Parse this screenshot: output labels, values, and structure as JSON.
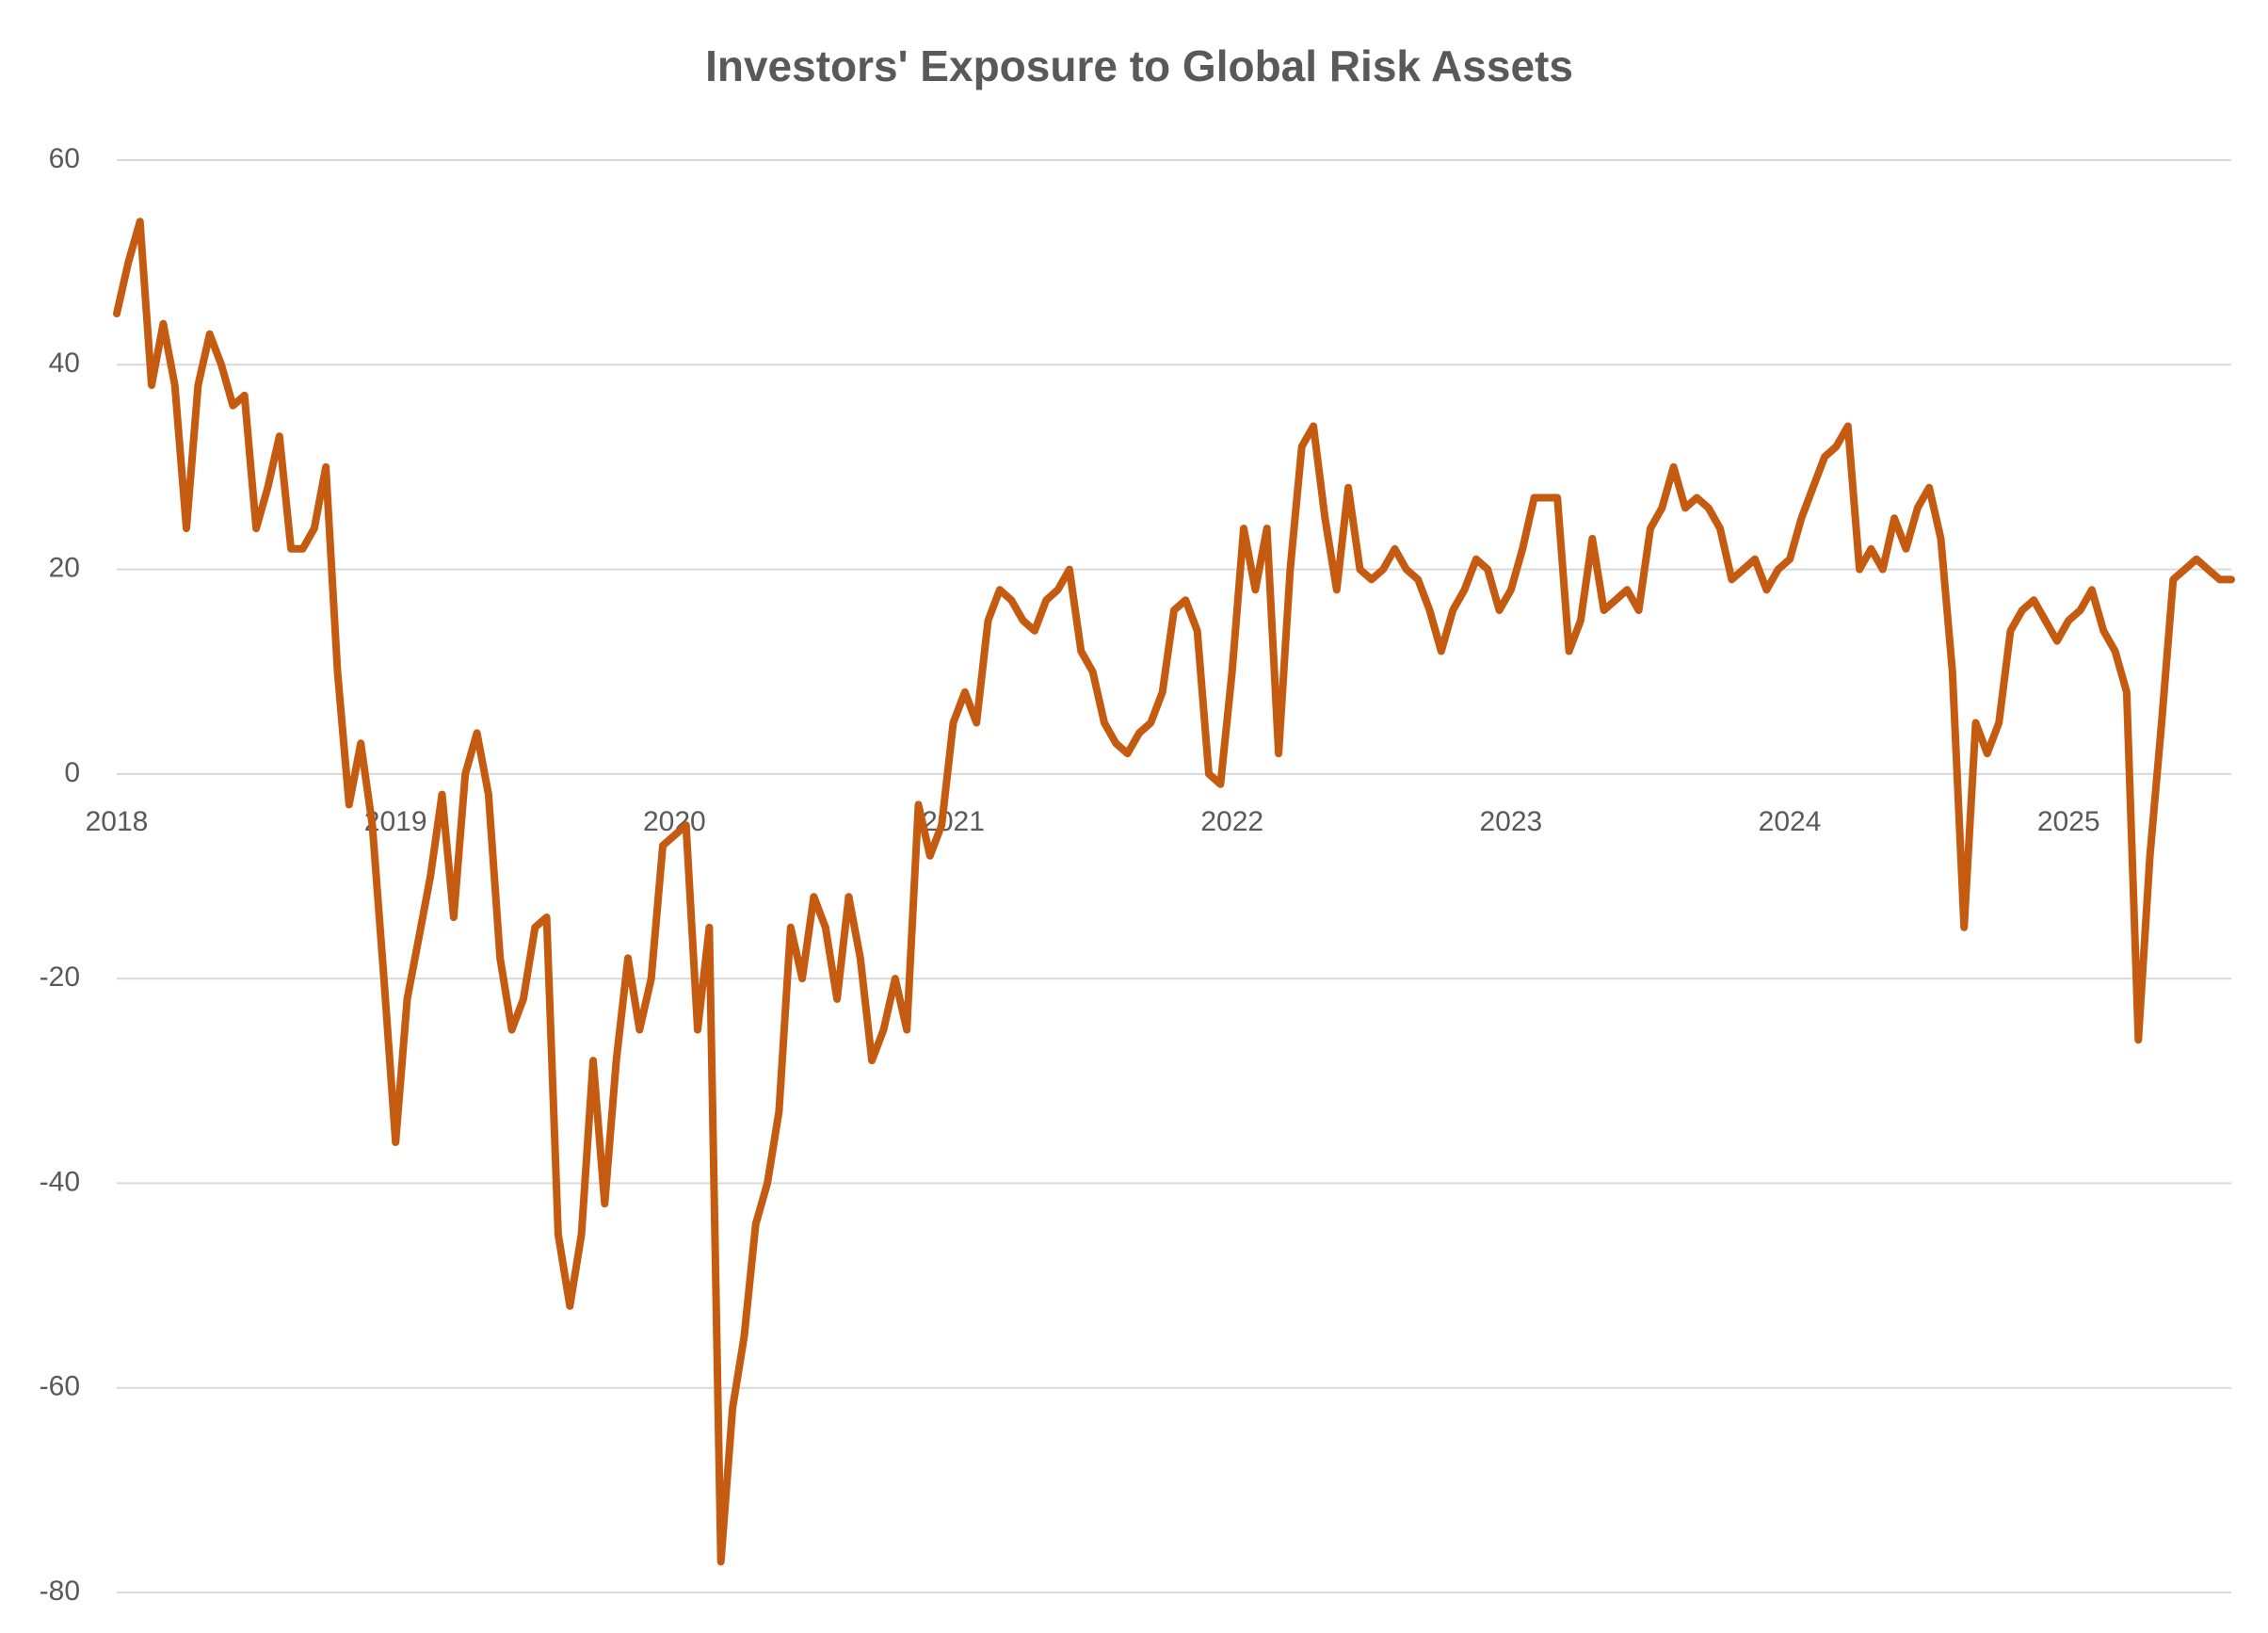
{
  "chart_data": {
    "type": "line",
    "title": "Investors' Exposure to Global Risk Assets",
    "categories": [
      "2018",
      null,
      null,
      null,
      null,
      null,
      null,
      null,
      null,
      null,
      null,
      null,
      null,
      null,
      null,
      null,
      null,
      null,
      null,
      null,
      null,
      null,
      null,
      null,
      "2019",
      null,
      null,
      null,
      null,
      null,
      null,
      null,
      null,
      null,
      null,
      null,
      null,
      null,
      null,
      null,
      null,
      null,
      null,
      null,
      null,
      null,
      null,
      null,
      "2020",
      null,
      null,
      null,
      null,
      null,
      null,
      null,
      null,
      null,
      null,
      null,
      null,
      null,
      null,
      null,
      null,
      null,
      null,
      null,
      null,
      null,
      null,
      null,
      "2021",
      null,
      null,
      null,
      null,
      null,
      null,
      null,
      null,
      null,
      null,
      null,
      null,
      null,
      null,
      null,
      null,
      null,
      null,
      null,
      null,
      null,
      null,
      null,
      "2022",
      null,
      null,
      null,
      null,
      null,
      null,
      null,
      null,
      null,
      null,
      null,
      null,
      null,
      null,
      null,
      null,
      null,
      null,
      null,
      null,
      null,
      null,
      null,
      "2023",
      null,
      null,
      null,
      null,
      null,
      null,
      null,
      null,
      null,
      null,
      null,
      null,
      null,
      null,
      null,
      null,
      null,
      null,
      null,
      null,
      null,
      null,
      null,
      "2024",
      null,
      null,
      null,
      null,
      null,
      null,
      null,
      null,
      null,
      null,
      null,
      null,
      null,
      null,
      null,
      null,
      null,
      null,
      null,
      null,
      null,
      null,
      null,
      "2025",
      null,
      null,
      null,
      null,
      null,
      null,
      null,
      null,
      null,
      null,
      null,
      null,
      null,
      null
    ],
    "values": [
      45,
      50,
      54,
      38,
      44,
      38,
      24,
      38,
      43,
      40,
      36,
      37,
      24,
      28,
      33,
      22,
      22,
      24,
      30,
      10,
      -3,
      3,
      -5,
      -20,
      -36,
      -22,
      -16,
      -10,
      -2,
      -14,
      0,
      4,
      -2,
      -18,
      -25,
      -22,
      -15,
      -14,
      -45,
      -52,
      -45,
      -28,
      -42,
      -28,
      -18,
      -25,
      -20,
      -7,
      -6,
      -5,
      -25,
      -15,
      -77,
      -62,
      -55,
      -44,
      -40,
      -33,
      -15,
      -20,
      -12,
      -15,
      -22,
      -12,
      -18,
      -28,
      -25,
      -20,
      -25,
      -3,
      -8,
      -5,
      5,
      8,
      5,
      15,
      18,
      17,
      15,
      14,
      17,
      18,
      20,
      12,
      10,
      5,
      3,
      2,
      4,
      5,
      8,
      16,
      17,
      14,
      0,
      -1,
      10,
      24,
      18,
      24,
      2,
      20,
      32,
      34,
      25,
      18,
      28,
      20,
      19,
      20,
      22,
      20,
      19,
      16,
      12,
      16,
      18,
      21,
      20,
      16,
      18,
      22,
      27,
      27,
      27,
      12,
      15,
      23,
      16,
      17,
      18,
      16,
      24,
      26,
      30,
      26,
      27,
      26,
      24,
      19,
      20,
      21,
      18,
      20,
      21,
      25,
      28,
      31,
      32,
      34,
      20,
      22,
      20,
      25,
      22,
      26,
      28,
      23,
      10,
      -15,
      5,
      2,
      5,
      14,
      16,
      17,
      15,
      13,
      15,
      16,
      18,
      14,
      12,
      8,
      -26,
      -8,
      5,
      19,
      20,
      21,
      20,
      19,
      19
    ],
    "color": "#c55a11",
    "ylim": [
      -80,
      60
    ],
    "yticks": [
      -80,
      -60,
      -40,
      -20,
      0,
      20,
      40,
      60
    ],
    "grid": true
  }
}
